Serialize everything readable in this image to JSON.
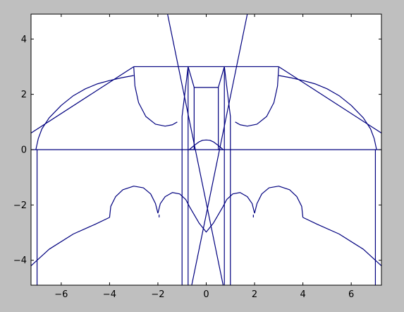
{
  "chart_data": {
    "type": "line",
    "title": "",
    "xlabel": "",
    "ylabel": "",
    "xlim": [
      -7.25,
      7.25
    ],
    "ylim": [
      -4.9,
      4.9
    ],
    "grid": false,
    "legend": "none",
    "colors": {
      "figure_background": "#bfbfbf",
      "axes_background": "#ffffff",
      "line": "#00007f",
      "axes_edge": "#000000"
    },
    "x_ticks": [
      {
        "value": -6,
        "label": "−6"
      },
      {
        "value": -4,
        "label": "−4"
      },
      {
        "value": -2,
        "label": "−2"
      },
      {
        "value": 0,
        "label": "0"
      },
      {
        "value": 2,
        "label": "2"
      },
      {
        "value": 4,
        "label": "4"
      },
      {
        "value": 6,
        "label": "6"
      }
    ],
    "y_ticks": [
      {
        "value": -4,
        "label": "−4"
      },
      {
        "value": -2,
        "label": "−2"
      },
      {
        "value": 0,
        "label": "0"
      },
      {
        "value": 2,
        "label": "2"
      },
      {
        "value": 4,
        "label": "4"
      }
    ],
    "series": [
      {
        "points": [
          [
            -7.25,
            0
          ],
          [
            7.25,
            0
          ]
        ]
      },
      {
        "points": [
          [
            -3,
            3
          ],
          [
            3,
            3
          ]
        ]
      },
      {
        "points": [
          [
            -3,
            3
          ],
          [
            -7.25,
            0.6
          ]
        ]
      },
      {
        "points": [
          [
            3,
            3
          ],
          [
            7.25,
            0.6
          ]
        ]
      },
      {
        "points": [
          [
            -7.05,
            0
          ],
          [
            -6.95,
            0.4
          ],
          [
            -6.8,
            0.75
          ],
          [
            -6.5,
            1.15
          ],
          [
            -6,
            1.6
          ],
          [
            -5.5,
            1.95
          ],
          [
            -5,
            2.2
          ],
          [
            -4.5,
            2.38
          ],
          [
            -4,
            2.5
          ],
          [
            -3.5,
            2.6
          ],
          [
            -3,
            2.68
          ]
        ]
      },
      {
        "points": [
          [
            7.05,
            0
          ],
          [
            6.95,
            0.4
          ],
          [
            6.8,
            0.75
          ],
          [
            6.5,
            1.15
          ],
          [
            6,
            1.6
          ],
          [
            5.5,
            1.95
          ],
          [
            5,
            2.2
          ],
          [
            4.5,
            2.38
          ],
          [
            4,
            2.5
          ],
          [
            3.5,
            2.6
          ],
          [
            3,
            2.68
          ]
        ]
      },
      {
        "points": [
          [
            -7,
            0
          ],
          [
            -7,
            -4.9
          ]
        ]
      },
      {
        "points": [
          [
            7,
            0
          ],
          [
            7,
            -4.9
          ]
        ]
      },
      {
        "points": [
          [
            -3,
            3
          ],
          [
            -2.95,
            2.3
          ],
          [
            -2.8,
            1.7
          ],
          [
            -2.5,
            1.2
          ],
          [
            -2.1,
            0.92
          ],
          [
            -1.7,
            0.85
          ],
          [
            -1.4,
            0.9
          ],
          [
            -1.2,
            1.0
          ]
        ]
      },
      {
        "points": [
          [
            3,
            3
          ],
          [
            2.95,
            2.3
          ],
          [
            2.8,
            1.7
          ],
          [
            2.5,
            1.2
          ],
          [
            2.1,
            0.92
          ],
          [
            1.7,
            0.85
          ],
          [
            1.4,
            0.9
          ],
          [
            1.2,
            1.0
          ]
        ]
      },
      {
        "points": [
          [
            -1,
            -4.9
          ],
          [
            -1,
            1.2
          ],
          [
            -0.75,
            3
          ],
          [
            -0.5,
            2.25
          ],
          [
            0.5,
            2.25
          ],
          [
            0.75,
            3
          ],
          [
            1,
            1.2
          ],
          [
            1,
            -4.9
          ]
        ]
      },
      {
        "points": [
          [
            -0.75,
            -4.9
          ],
          [
            -0.75,
            3
          ]
        ]
      },
      {
        "points": [
          [
            0.75,
            -4.9
          ],
          [
            0.75,
            3
          ]
        ]
      },
      {
        "points": [
          [
            -0.5,
            0
          ],
          [
            -0.5,
            2.25
          ]
        ]
      },
      {
        "points": [
          [
            0.5,
            0
          ],
          [
            0.5,
            2.25
          ]
        ]
      },
      {
        "points": [
          [
            -0.75,
            0
          ],
          [
            -0.5,
            0
          ]
        ]
      },
      {
        "points": [
          [
            0.5,
            0
          ],
          [
            0.75,
            0
          ]
        ]
      },
      {
        "points": [
          [
            -1.6,
            4.9
          ],
          [
            0.7,
            -4.9
          ]
        ]
      },
      {
        "points": [
          [
            1.7,
            4.9
          ],
          [
            -0.6,
            -4.9
          ]
        ]
      },
      {
        "points": [
          [
            -0.7,
            0
          ],
          [
            -0.5,
            0.15
          ],
          [
            -0.3,
            0.28
          ],
          [
            -0.15,
            0.34
          ],
          [
            0,
            0.35
          ],
          [
            0.15,
            0.34
          ],
          [
            0.3,
            0.28
          ],
          [
            0.5,
            0.15
          ],
          [
            0.7,
            0
          ]
        ]
      },
      {
        "points": [
          [
            -7.25,
            -4.2
          ],
          [
            -6.5,
            -3.6
          ],
          [
            -5.5,
            -3.05
          ],
          [
            -4.6,
            -2.7
          ],
          [
            -4,
            -2.45
          ]
        ]
      },
      {
        "points": [
          [
            7.25,
            -4.2
          ],
          [
            6.5,
            -3.6
          ],
          [
            5.5,
            -3.05
          ],
          [
            4.6,
            -2.7
          ],
          [
            4,
            -2.45
          ]
        ]
      },
      {
        "points": [
          [
            -4,
            -2.45
          ],
          [
            -3.95,
            -2.05
          ],
          [
            -3.75,
            -1.7
          ],
          [
            -3.45,
            -1.45
          ],
          [
            -3,
            -1.32
          ],
          [
            -2.6,
            -1.38
          ],
          [
            -2.3,
            -1.6
          ],
          [
            -2.1,
            -1.95
          ],
          [
            -2,
            -2.3
          ]
        ]
      },
      {
        "points": [
          [
            4,
            -2.45
          ],
          [
            3.95,
            -2.05
          ],
          [
            3.75,
            -1.7
          ],
          [
            3.45,
            -1.45
          ],
          [
            3,
            -1.32
          ],
          [
            2.6,
            -1.38
          ],
          [
            2.3,
            -1.6
          ],
          [
            2.1,
            -1.95
          ],
          [
            2,
            -2.3
          ]
        ]
      },
      {
        "points": [
          [
            -2,
            -2.3
          ],
          [
            -1.9,
            -1.95
          ],
          [
            -1.7,
            -1.7
          ],
          [
            -1.4,
            -1.55
          ],
          [
            -1.1,
            -1.6
          ],
          [
            -0.85,
            -1.8
          ],
          [
            -0.7,
            -2.05
          ]
        ]
      },
      {
        "points": [
          [
            2,
            -2.3
          ],
          [
            1.9,
            -1.95
          ],
          [
            1.7,
            -1.7
          ],
          [
            1.4,
            -1.55
          ],
          [
            1.1,
            -1.6
          ],
          [
            0.85,
            -1.8
          ],
          [
            0.7,
            -2.05
          ]
        ]
      },
      {
        "points": [
          [
            -0.7,
            -2.05
          ],
          [
            -0.5,
            -2.35
          ],
          [
            -0.3,
            -2.65
          ],
          [
            0,
            -2.98
          ],
          [
            0.3,
            -2.65
          ],
          [
            0.5,
            -2.35
          ],
          [
            0.7,
            -2.05
          ]
        ]
      },
      {
        "points": [
          [
            -1.95,
            -2.35
          ],
          [
            -1.95,
            -2.45
          ]
        ]
      },
      {
        "points": [
          [
            1.95,
            -2.35
          ],
          [
            1.95,
            -2.45
          ]
        ]
      }
    ]
  }
}
